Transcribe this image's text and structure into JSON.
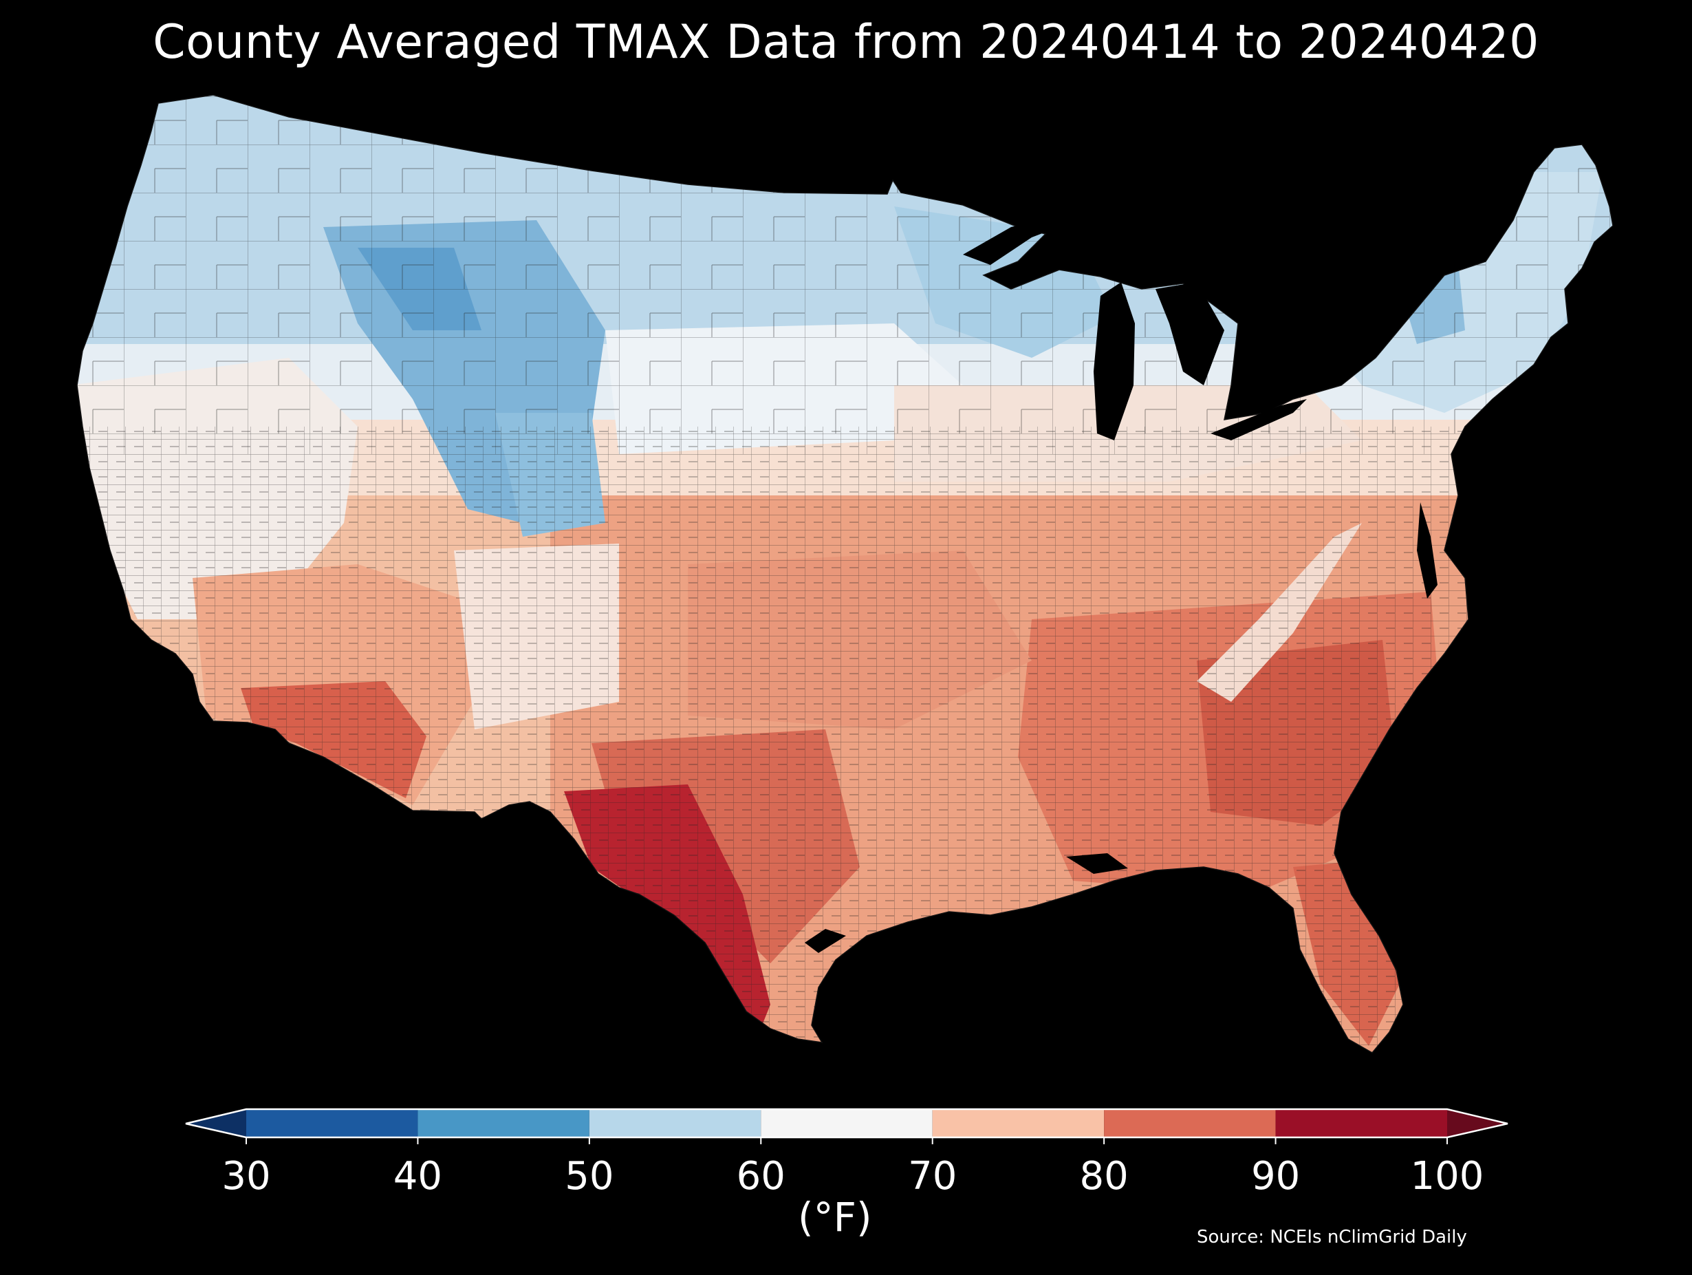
{
  "title": "County Averaged TMAX Data from 20240414 to 20240420",
  "colorbar": {
    "ticks": [
      "30",
      "40",
      "50",
      "60",
      "70",
      "80",
      "90",
      "100"
    ],
    "bins": [
      {
        "from": 30,
        "to": 40,
        "color": "#1c5aa0"
      },
      {
        "from": 40,
        "to": 50,
        "color": "#4897c6"
      },
      {
        "from": 50,
        "to": 60,
        "color": "#b7d7ea"
      },
      {
        "from": 60,
        "to": 70,
        "color": "#f5f5f5"
      },
      {
        "from": 70,
        "to": 80,
        "color": "#f9c2a7"
      },
      {
        "from": 80,
        "to": 90,
        "color": "#dc6a55"
      },
      {
        "from": 90,
        "to": 100,
        "color": "#9a0f27"
      }
    ],
    "under_color": "#0d3064",
    "over_color": "#670a1d",
    "unit": "(°F)"
  },
  "source": "Source: NCEIs nClimGrid Daily",
  "map": {
    "region": "Contiguous United States",
    "pattern": "cool (40–60°F) across northern tier and Rockies; warm (70–90°F) across South; hottest (90–100°F) in south Texas and southwest Arizona",
    "ocean_color": "#000000",
    "palette": {
      "cold": "#4a8fc4",
      "cool": "#a9cfe6",
      "mild": "#eef3f7",
      "warm": "#f3b89a",
      "hot": "#e07a5f",
      "hotter": "#cf4f3f",
      "hottest": "#b1202e"
    }
  }
}
